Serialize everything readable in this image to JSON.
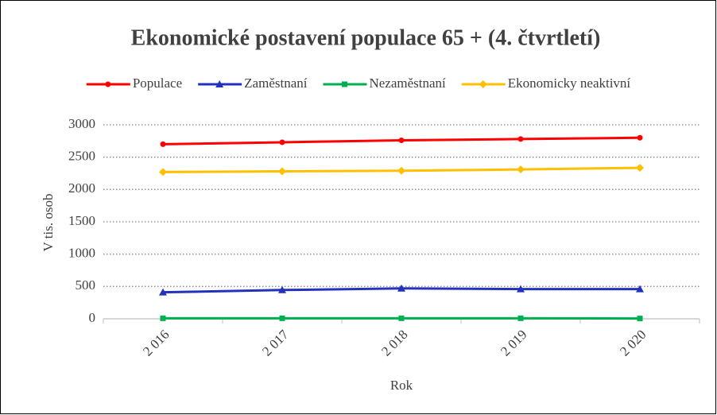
{
  "chart_data": {
    "type": "line",
    "title": "Ekonomické postavení populace 65 + (4. čtvrtletí)",
    "x_label": "Rok",
    "y_label": "V tis. osob",
    "categories": [
      "2 016",
      "2 017",
      "2 018",
      "2 019",
      "2 020"
    ],
    "series": [
      {
        "name": "Populace",
        "color": "#ff0000",
        "marker": "circle",
        "values": [
          2700,
          2730,
          2760,
          2780,
          2800
        ]
      },
      {
        "name": "Zaměstnaní",
        "color": "#2233bb",
        "marker": "triangle",
        "values": [
          410,
          445,
          470,
          460,
          460
        ]
      },
      {
        "name": "Nezaměstnaní",
        "color": "#00b050",
        "marker": "square",
        "values": [
          8,
          8,
          8,
          8,
          5
        ]
      },
      {
        "name": "Ekonomicky neaktivní",
        "color": "#ffc000",
        "marker": "diamond",
        "values": [
          2270,
          2280,
          2290,
          2310,
          2335
        ]
      }
    ],
    "ylim": [
      0,
      3000
    ],
    "yticks": [
      0,
      500,
      1000,
      1500,
      2000,
      2500,
      3000
    ],
    "grid": true,
    "legend": "top"
  }
}
